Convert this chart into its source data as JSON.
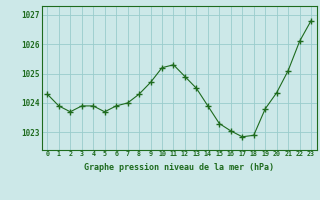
{
  "x": [
    0,
    1,
    2,
    3,
    4,
    5,
    6,
    7,
    8,
    9,
    10,
    11,
    12,
    13,
    14,
    15,
    16,
    17,
    18,
    19,
    20,
    21,
    22,
    23
  ],
  "y": [
    1024.3,
    1023.9,
    1023.7,
    1023.9,
    1023.9,
    1023.7,
    1023.9,
    1024.0,
    1024.3,
    1024.7,
    1025.2,
    1025.3,
    1024.9,
    1024.5,
    1023.9,
    1023.3,
    1023.05,
    1022.85,
    1022.9,
    1023.8,
    1024.35,
    1025.1,
    1026.1,
    1026.8
  ],
  "bg_color": "#cce8e8",
  "line_color": "#1e6b1e",
  "marker_color": "#1e6b1e",
  "grid_color": "#99cccc",
  "xlabel": "Graphe pression niveau de la mer (hPa)",
  "xlabel_color": "#1e6b1e",
  "tick_label_color": "#1e6b1e",
  "ytick_labels": [
    1023,
    1024,
    1025,
    1026,
    1027
  ],
  "ylim": [
    1022.4,
    1027.3
  ],
  "xlim": [
    -0.5,
    23.5
  ],
  "xtick_labels": [
    "0",
    "1",
    "2",
    "3",
    "4",
    "5",
    "6",
    "7",
    "8",
    "9",
    "10",
    "11",
    "12",
    "13",
    "14",
    "15",
    "16",
    "17",
    "18",
    "19",
    "20",
    "21",
    "22",
    "23"
  ],
  "border_color": "#1e6b1e",
  "figsize": [
    3.2,
    2.0
  ],
  "dpi": 100
}
